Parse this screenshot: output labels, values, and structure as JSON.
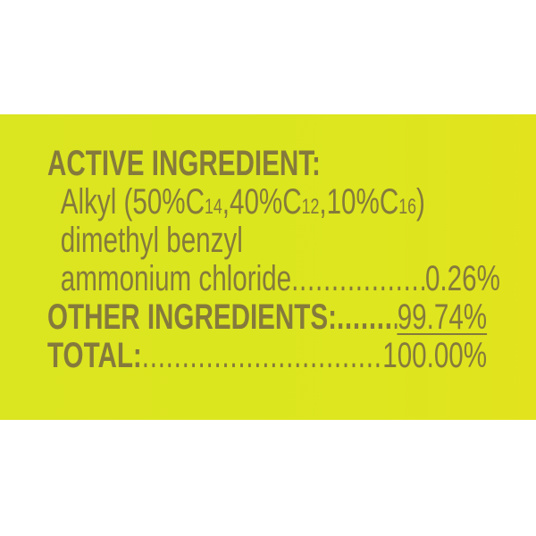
{
  "label": {
    "active_heading": "ACTIVE INGREDIENT:",
    "alkyl": {
      "prefix": "Alkyl (50%C",
      "sub1": "14",
      "mid1": ",40%C",
      "sub2": "12",
      "mid2": ",10%C",
      "sub3": "16",
      "suffix": ")"
    },
    "line2": "dimethyl benzyl",
    "line3": "ammonium chloride",
    "active_value": "0.26%",
    "other_heading": "OTHER INGREDIENTS:",
    "other_value": "99.74%",
    "total_heading": "TOTAL:",
    "total_value": "100.00%",
    "leader": "......................................................................"
  },
  "colors": {
    "background": "#dde51f",
    "text": "#857a3c"
  }
}
